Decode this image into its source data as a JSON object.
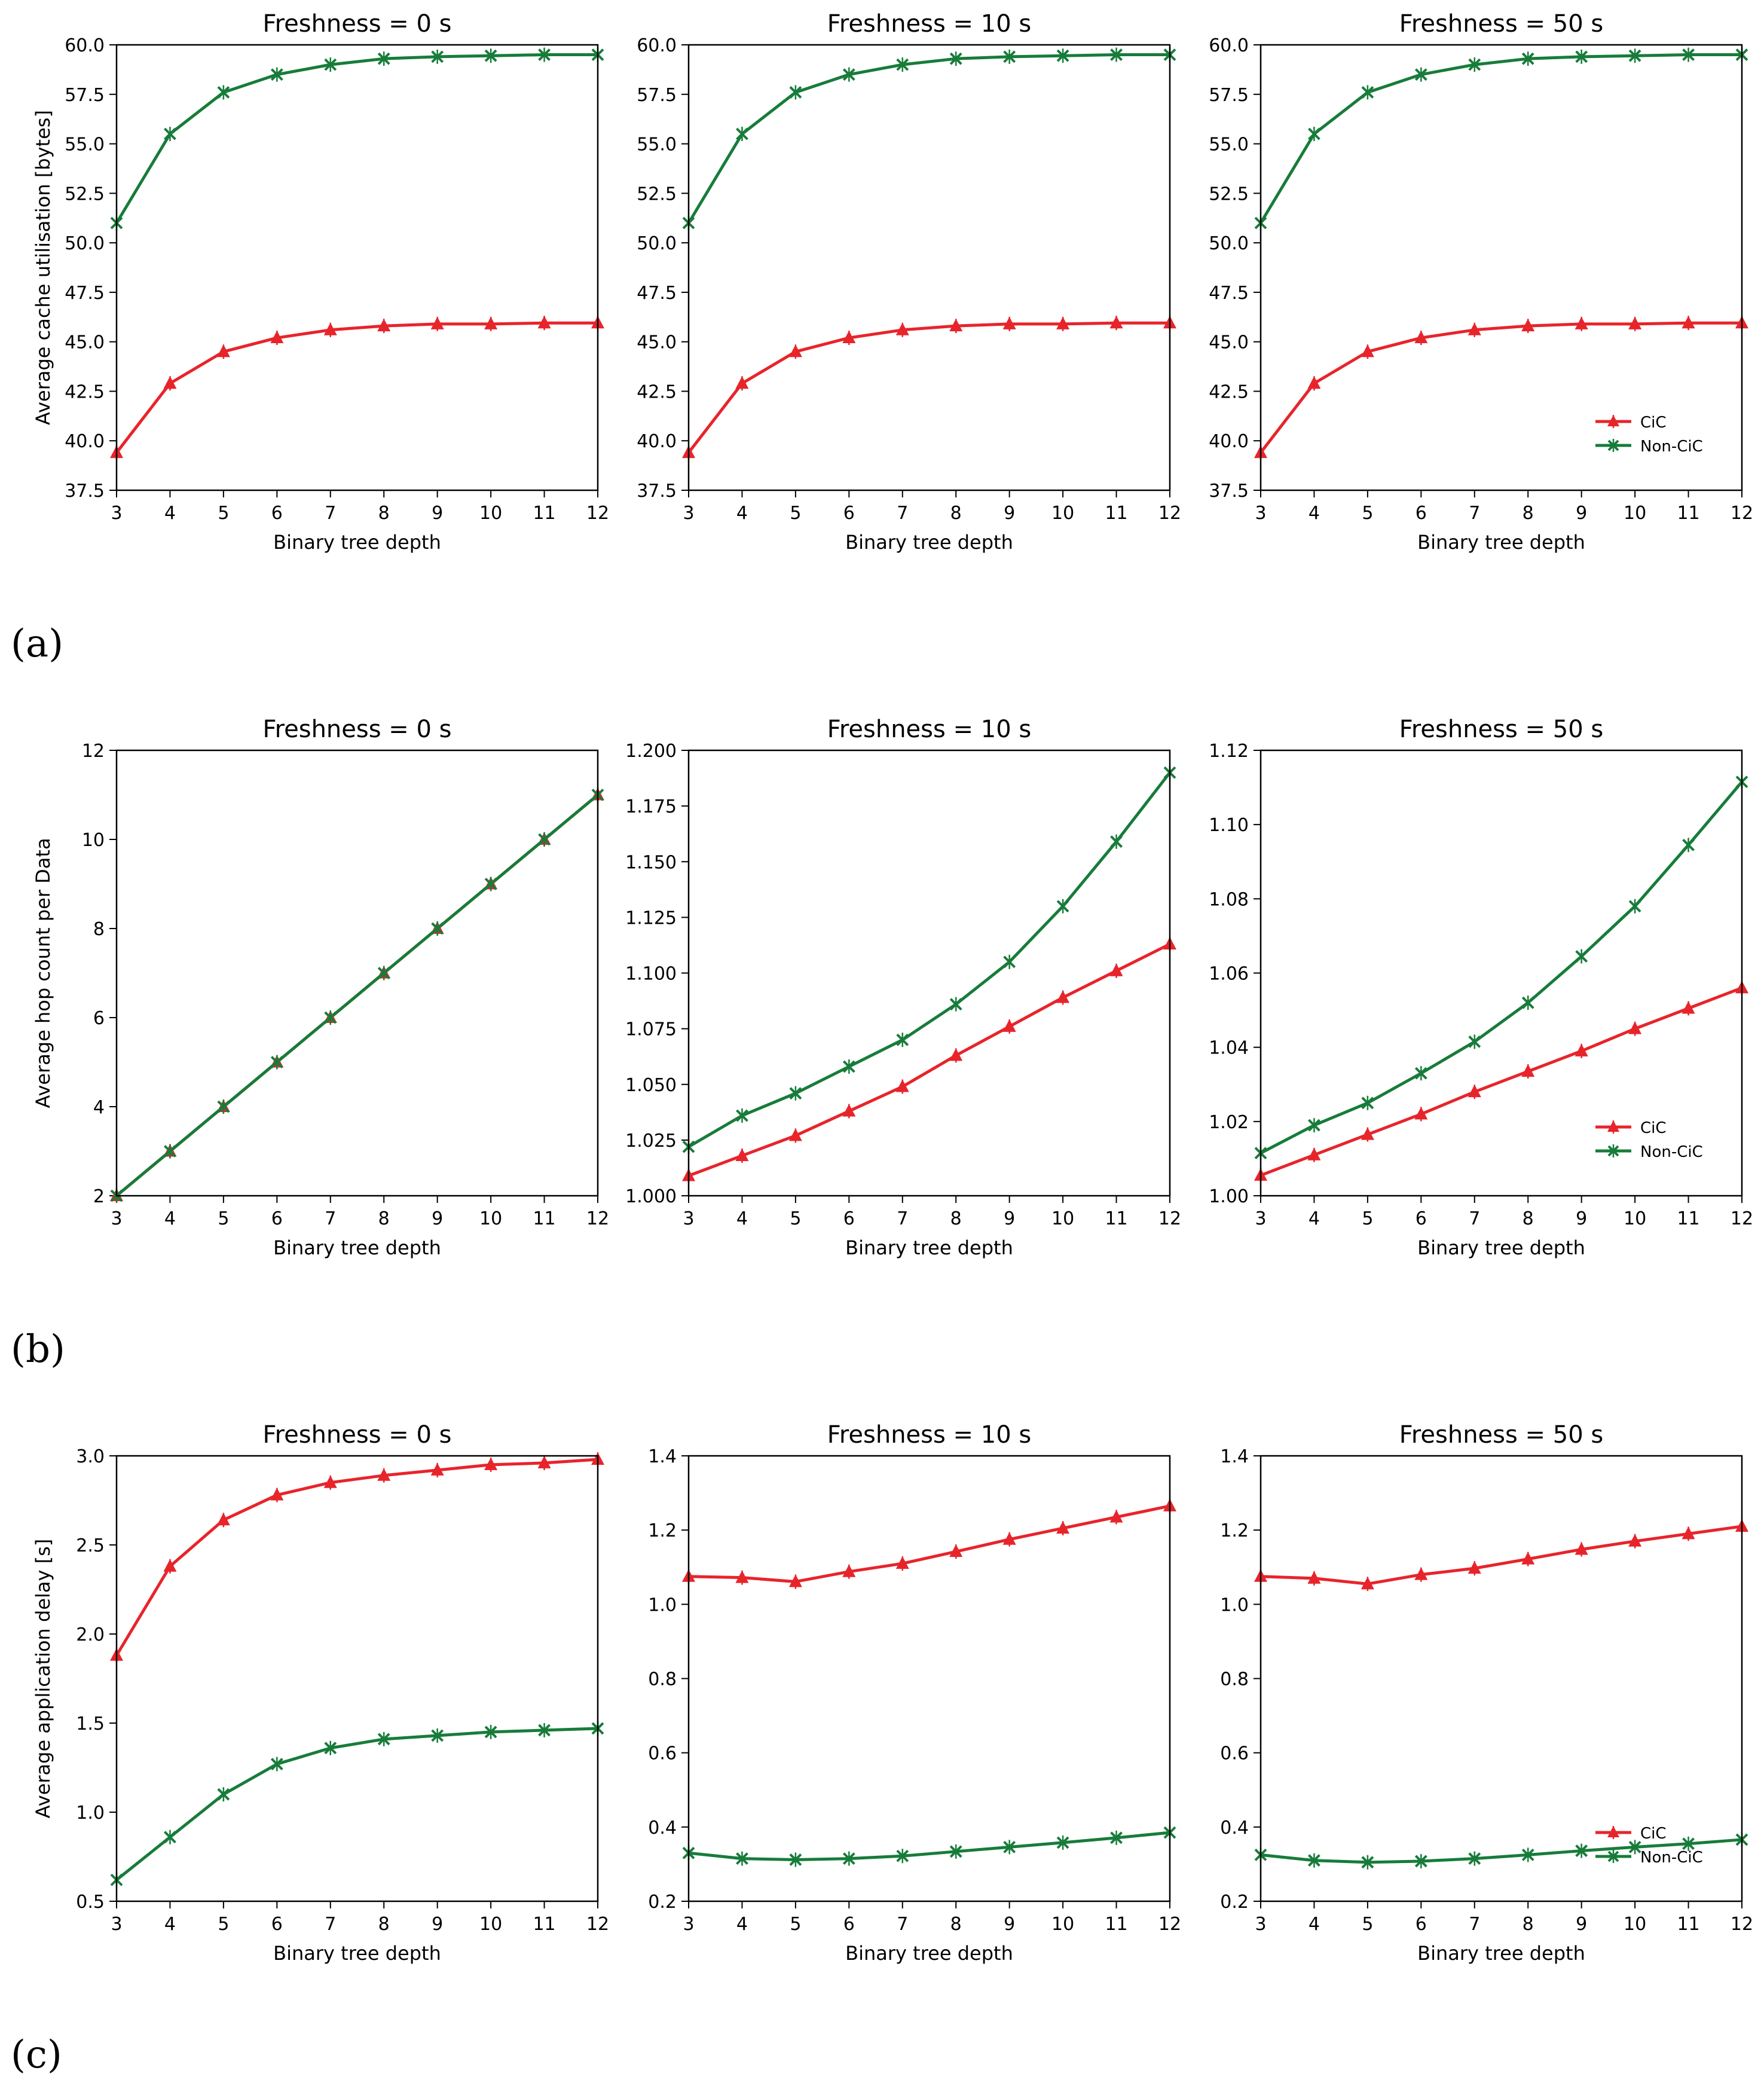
{
  "rows": [
    {
      "label": "(a)"
    },
    {
      "label": "(b)"
    },
    {
      "label": "(c)"
    }
  ],
  "colors": {
    "cic": "#e8242b",
    "noncic": "#177c3a",
    "axis": "#000000"
  },
  "chart_data": [
    {
      "type": "line",
      "row": 0,
      "col": 0,
      "title": "Freshness = 0 s",
      "xlabel": "Binary tree depth",
      "ylabel": "Average cache utilisation [bytes]",
      "x": [
        3,
        4,
        5,
        6,
        7,
        8,
        9,
        10,
        11,
        12
      ],
      "xlim": [
        3,
        12
      ],
      "ylim": [
        37.5,
        60.0
      ],
      "yticks": [
        "37.5",
        "40.0",
        "42.5",
        "45.0",
        "47.5",
        "50.0",
        "52.5",
        "55.0",
        "57.5",
        "60.0"
      ],
      "ytick_values": [
        37.5,
        40,
        42.5,
        45,
        47.5,
        50,
        52.5,
        55,
        57.5,
        60
      ],
      "legend": false,
      "series": [
        {
          "name": "CiC",
          "color": "#e8242b",
          "marker": "triangle",
          "values": [
            39.4,
            42.9,
            44.5,
            45.2,
            45.6,
            45.8,
            45.9,
            45.9,
            45.95,
            45.95
          ]
        },
        {
          "name": "Non-CiC",
          "color": "#177c3a",
          "marker": "x",
          "values": [
            51.0,
            55.5,
            57.6,
            58.5,
            59.0,
            59.3,
            59.4,
            59.45,
            59.5,
            59.5
          ]
        }
      ]
    },
    {
      "type": "line",
      "row": 0,
      "col": 1,
      "title": "Freshness = 10 s",
      "xlabel": "Binary tree depth",
      "ylabel": "",
      "x": [
        3,
        4,
        5,
        6,
        7,
        8,
        9,
        10,
        11,
        12
      ],
      "xlim": [
        3,
        12
      ],
      "ylim": [
        37.5,
        60.0
      ],
      "yticks": [
        "37.5",
        "40.0",
        "42.5",
        "45.0",
        "47.5",
        "50.0",
        "52.5",
        "55.0",
        "57.5",
        "60.0"
      ],
      "ytick_values": [
        37.5,
        40,
        42.5,
        45,
        47.5,
        50,
        52.5,
        55,
        57.5,
        60
      ],
      "legend": false,
      "series": [
        {
          "name": "CiC",
          "color": "#e8242b",
          "marker": "triangle",
          "values": [
            39.4,
            42.9,
            44.5,
            45.2,
            45.6,
            45.8,
            45.9,
            45.9,
            45.95,
            45.95
          ]
        },
        {
          "name": "Non-CiC",
          "color": "#177c3a",
          "marker": "x",
          "values": [
            51.0,
            55.5,
            57.6,
            58.5,
            59.0,
            59.3,
            59.4,
            59.45,
            59.5,
            59.5
          ]
        }
      ]
    },
    {
      "type": "line",
      "row": 0,
      "col": 2,
      "title": "Freshness = 50 s",
      "xlabel": "Binary tree depth",
      "ylabel": "",
      "x": [
        3,
        4,
        5,
        6,
        7,
        8,
        9,
        10,
        11,
        12
      ],
      "xlim": [
        3,
        12
      ],
      "ylim": [
        37.5,
        60.0
      ],
      "yticks": [
        "37.5",
        "40.0",
        "42.5",
        "45.0",
        "47.5",
        "50.0",
        "52.5",
        "55.0",
        "57.5",
        "60.0"
      ],
      "ytick_values": [
        37.5,
        40,
        42.5,
        45,
        47.5,
        50,
        52.5,
        55,
        57.5,
        60
      ],
      "legend": true,
      "series": [
        {
          "name": "CiC",
          "color": "#e8242b",
          "marker": "triangle",
          "values": [
            39.4,
            42.9,
            44.5,
            45.2,
            45.6,
            45.8,
            45.9,
            45.9,
            45.95,
            45.95
          ]
        },
        {
          "name": "Non-CiC",
          "color": "#177c3a",
          "marker": "x",
          "values": [
            51.0,
            55.5,
            57.6,
            58.5,
            59.0,
            59.3,
            59.4,
            59.45,
            59.5,
            59.5
          ]
        }
      ]
    },
    {
      "type": "line",
      "row": 1,
      "col": 0,
      "title": "Freshness = 0 s",
      "xlabel": "Binary tree depth",
      "ylabel": "Average hop count per Data",
      "x": [
        3,
        4,
        5,
        6,
        7,
        8,
        9,
        10,
        11,
        12
      ],
      "xlim": [
        3,
        12
      ],
      "ylim": [
        2,
        12
      ],
      "yticks": [
        "2",
        "4",
        "6",
        "8",
        "10",
        "12"
      ],
      "ytick_values": [
        2,
        4,
        6,
        8,
        10,
        12
      ],
      "legend": false,
      "series": [
        {
          "name": "CiC",
          "color": "#e8242b",
          "marker": "triangle",
          "values": [
            2,
            3,
            4,
            5,
            6,
            7,
            8,
            9,
            10,
            11
          ]
        },
        {
          "name": "Non-CiC",
          "color": "#177c3a",
          "marker": "x",
          "values": [
            2,
            3,
            4,
            5,
            6,
            7,
            8,
            9,
            10,
            11
          ]
        }
      ]
    },
    {
      "type": "line",
      "row": 1,
      "col": 1,
      "title": "Freshness = 10 s",
      "xlabel": "Binary tree depth",
      "ylabel": "",
      "x": [
        3,
        4,
        5,
        6,
        7,
        8,
        9,
        10,
        11,
        12
      ],
      "xlim": [
        3,
        12
      ],
      "ylim": [
        1.0,
        1.2
      ],
      "yticks": [
        "1.000",
        "1.025",
        "1.050",
        "1.075",
        "1.100",
        "1.125",
        "1.150",
        "1.175",
        "1.200"
      ],
      "ytick_values": [
        1.0,
        1.025,
        1.05,
        1.075,
        1.1,
        1.125,
        1.15,
        1.175,
        1.2
      ],
      "legend": false,
      "series": [
        {
          "name": "CiC",
          "color": "#e8242b",
          "marker": "triangle",
          "values": [
            1.009,
            1.018,
            1.027,
            1.038,
            1.049,
            1.063,
            1.076,
            1.089,
            1.101,
            1.113
          ]
        },
        {
          "name": "Non-CiC",
          "color": "#177c3a",
          "marker": "x",
          "values": [
            1.022,
            1.036,
            1.046,
            1.058,
            1.07,
            1.086,
            1.105,
            1.13,
            1.159,
            1.19
          ]
        }
      ]
    },
    {
      "type": "line",
      "row": 1,
      "col": 2,
      "title": "Freshness = 50 s",
      "xlabel": "Binary tree depth",
      "ylabel": "",
      "x": [
        3,
        4,
        5,
        6,
        7,
        8,
        9,
        10,
        11,
        12
      ],
      "xlim": [
        3,
        12
      ],
      "ylim": [
        1.0,
        1.12
      ],
      "yticks": [
        "1.00",
        "1.02",
        "1.04",
        "1.06",
        "1.08",
        "1.10",
        "1.12"
      ],
      "ytick_values": [
        1.0,
        1.02,
        1.04,
        1.06,
        1.08,
        1.1,
        1.12
      ],
      "legend": true,
      "series": [
        {
          "name": "CiC",
          "color": "#e8242b",
          "marker": "triangle",
          "values": [
            1.0055,
            1.011,
            1.0165,
            1.022,
            1.028,
            1.0335,
            1.039,
            1.045,
            1.0505,
            1.056
          ]
        },
        {
          "name": "Non-CiC",
          "color": "#177c3a",
          "marker": "x",
          "values": [
            1.0115,
            1.019,
            1.025,
            1.033,
            1.0415,
            1.052,
            1.0645,
            1.078,
            1.0945,
            1.1115
          ]
        }
      ]
    },
    {
      "type": "line",
      "row": 2,
      "col": 0,
      "title": "Freshness = 0 s",
      "xlabel": "Binary tree depth",
      "ylabel": "Average application delay [s]",
      "x": [
        3,
        4,
        5,
        6,
        7,
        8,
        9,
        10,
        11,
        12
      ],
      "xlim": [
        3,
        12
      ],
      "ylim": [
        0.5,
        3.0
      ],
      "yticks": [
        "0.5",
        "1.0",
        "1.5",
        "2.0",
        "2.5",
        "3.0"
      ],
      "ytick_values": [
        0.5,
        1.0,
        1.5,
        2.0,
        2.5,
        3.0
      ],
      "legend": false,
      "series": [
        {
          "name": "CiC",
          "color": "#e8242b",
          "marker": "triangle",
          "values": [
            1.88,
            2.38,
            2.64,
            2.78,
            2.85,
            2.89,
            2.92,
            2.95,
            2.96,
            2.98
          ]
        },
        {
          "name": "Non-CiC",
          "color": "#177c3a",
          "marker": "x",
          "values": [
            0.62,
            0.86,
            1.1,
            1.27,
            1.36,
            1.41,
            1.43,
            1.45,
            1.46,
            1.47
          ]
        }
      ]
    },
    {
      "type": "line",
      "row": 2,
      "col": 1,
      "title": "Freshness = 10 s",
      "xlabel": "Binary tree depth",
      "ylabel": "",
      "x": [
        3,
        4,
        5,
        6,
        7,
        8,
        9,
        10,
        11,
        12
      ],
      "xlim": [
        3,
        12
      ],
      "ylim": [
        0.2,
        1.4
      ],
      "yticks": [
        "0.2",
        "0.4",
        "0.6",
        "0.8",
        "1.0",
        "1.2",
        "1.4"
      ],
      "ytick_values": [
        0.2,
        0.4,
        0.6,
        0.8,
        1.0,
        1.2,
        1.4
      ],
      "legend": false,
      "series": [
        {
          "name": "CiC",
          "color": "#e8242b",
          "marker": "triangle",
          "values": [
            1.075,
            1.072,
            1.061,
            1.088,
            1.11,
            1.142,
            1.175,
            1.205,
            1.235,
            1.265
          ]
        },
        {
          "name": "Non-CiC",
          "color": "#177c3a",
          "marker": "x",
          "values": [
            0.33,
            0.315,
            0.312,
            0.315,
            0.322,
            0.334,
            0.346,
            0.358,
            0.371,
            0.385
          ]
        }
      ]
    },
    {
      "type": "line",
      "row": 2,
      "col": 2,
      "title": "Freshness = 50 s",
      "xlabel": "Binary tree depth",
      "ylabel": "",
      "x": [
        3,
        4,
        5,
        6,
        7,
        8,
        9,
        10,
        11,
        12
      ],
      "xlim": [
        3,
        12
      ],
      "ylim": [
        0.2,
        1.4
      ],
      "yticks": [
        "0.2",
        "0.4",
        "0.6",
        "0.8",
        "1.0",
        "1.2",
        "1.4"
      ],
      "ytick_values": [
        0.2,
        0.4,
        0.6,
        0.8,
        1.0,
        1.2,
        1.4
      ],
      "legend": true,
      "series": [
        {
          "name": "CiC",
          "color": "#e8242b",
          "marker": "triangle",
          "values": [
            1.075,
            1.07,
            1.055,
            1.08,
            1.097,
            1.122,
            1.148,
            1.17,
            1.19,
            1.21
          ]
        },
        {
          "name": "Non-CiC",
          "color": "#177c3a",
          "marker": "x",
          "values": [
            0.325,
            0.31,
            0.305,
            0.308,
            0.315,
            0.325,
            0.336,
            0.346,
            0.355,
            0.366
          ]
        }
      ]
    }
  ]
}
